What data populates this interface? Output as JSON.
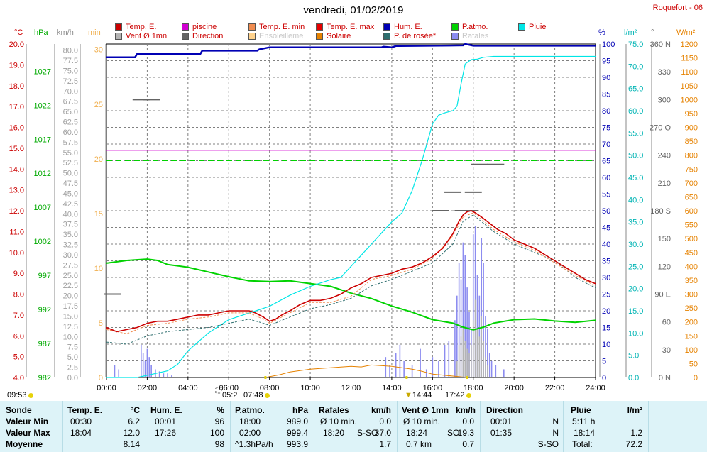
{
  "title": "vendredi, 01/02/2019",
  "station": "Roquefort - 06",
  "legend": [
    {
      "label": "Temp. E.",
      "color": "#cc0000",
      "col": 0,
      "row": 0
    },
    {
      "label": "Vent Ø 1mn",
      "color": "#b4b4b4",
      "col": 0,
      "row": 1
    },
    {
      "label": "piscine",
      "color": "#d200d2",
      "col": 1,
      "row": 0
    },
    {
      "label": "Direction",
      "color": "#646464",
      "col": 1,
      "row": 1
    },
    {
      "label": "Temp. E. min",
      "color": "#f08c50",
      "col": 2,
      "row": 0
    },
    {
      "label": "Ensoleilleme",
      "color": "#ffd28c",
      "col": 2,
      "row": 1,
      "faded": true
    },
    {
      "label": "Temp. E. max",
      "color": "#e60000",
      "col": 3,
      "row": 0
    },
    {
      "label": "Solaire",
      "color": "#e68200",
      "col": 3,
      "row": 1
    },
    {
      "label": "Hum. E.",
      "color": "#0000b4",
      "col": 4,
      "row": 0
    },
    {
      "label": "P. de rosée*",
      "color": "#2e6e6e",
      "col": 4,
      "row": 1
    },
    {
      "label": "P.atmo.",
      "color": "#00d200",
      "col": 5,
      "row": 0
    },
    {
      "label": "Rafales",
      "color": "#8c8cf0",
      "col": 5,
      "row": 1,
      "faded": true
    },
    {
      "label": "Pluie",
      "color": "#00e6e6",
      "col": 6,
      "row": 0
    }
  ],
  "units": {
    "temp": "°C",
    "press": "hPa",
    "wind": "km/h",
    "minutes": "min",
    "hum": "%",
    "rain": "l/m²",
    "dir": "°",
    "solar": "W/m²"
  },
  "axes": {
    "temp_ticks": [
      "20.0",
      "19.0",
      "18.0",
      "17.0",
      "16.0",
      "15.0",
      "14.0",
      "13.0",
      "12.0",
      "11.0",
      "10.0",
      "9.0",
      "8.0",
      "7.0",
      "6.0",
      "5.0",
      "4.0"
    ],
    "press_ticks": [
      "1027",
      "1022",
      "1017",
      "1012",
      "1007",
      "1002",
      "997",
      "992",
      "987",
      "982"
    ],
    "wind_ticks": [
      "80.0",
      "77.5",
      "75.0",
      "72.5",
      "70.0",
      "67.5",
      "65.0",
      "62.5",
      "60.0",
      "57.5",
      "55.0",
      "52.5",
      "50.0",
      "47.5",
      "45.0",
      "42.5",
      "40.0",
      "37.5",
      "35.0",
      "32.5",
      "30.0",
      "27.5",
      "25.0",
      "22.5",
      "20.0",
      "17.5",
      "15.0",
      "12.5",
      "10.0",
      "7.5",
      "5.0",
      "2.5",
      "0.0"
    ],
    "min_ticks": [
      "30",
      "25",
      "20",
      "15",
      "10",
      "5",
      "0"
    ],
    "hum_ticks": [
      "100",
      "95",
      "90",
      "85",
      "80",
      "75",
      "70",
      "65",
      "60",
      "55",
      "50",
      "45",
      "40",
      "35",
      "30",
      "25",
      "20",
      "15",
      "10",
      "5",
      "0"
    ],
    "rain_ticks": [
      "75.0",
      "70.0",
      "65.0",
      "60.0",
      "55.0",
      "50.0",
      "45.0",
      "40.0",
      "35.0",
      "30.0",
      "25.0",
      "20.0",
      "15.0",
      "10.0",
      "5.0",
      "0.0"
    ],
    "dir_ticks": [
      {
        "v": 360,
        "t": "360 N"
      },
      {
        "v": 330,
        "t": "330"
      },
      {
        "v": 300,
        "t": "300"
      },
      {
        "v": 270,
        "t": "270 O"
      },
      {
        "v": 240,
        "t": "240"
      },
      {
        "v": 210,
        "t": "210"
      },
      {
        "v": 180,
        "t": "180 S"
      },
      {
        "v": 150,
        "t": "150"
      },
      {
        "v": 120,
        "t": "120"
      },
      {
        "v": 90,
        "t": "90 E"
      },
      {
        "v": 60,
        "t": "60"
      },
      {
        "v": 30,
        "t": "30"
      },
      {
        "v": 0,
        "t": "0 N"
      }
    ],
    "solar_ticks": [
      "1200",
      "1150",
      "1100",
      "1050",
      "1000",
      "950",
      "900",
      "850",
      "800",
      "750",
      "700",
      "650",
      "600",
      "550",
      "500",
      "450",
      "400",
      "350",
      "300",
      "250",
      "200",
      "150",
      "100",
      "50",
      "0"
    ],
    "x_ticks": [
      "00:00",
      "02:00",
      "04:00",
      "06:00",
      "08:00",
      "10:00",
      "12:00",
      "14:00",
      "16:00",
      "18:00",
      "20:00",
      "22:00",
      "24:00"
    ]
  },
  "sun_events": {
    "sunrise_prev": "09:53",
    "sunrise": "07:48",
    "sunset": "17:42",
    "noon": "14:44",
    "day_length": "05:2",
    "sunrise_time_h": 7.8,
    "noon_time_h": 14.73,
    "sunset_time_h": 17.7,
    "length_marker_h": 5.5
  },
  "chart_data": {
    "type": "line",
    "title": "vendredi, 01/02/2019",
    "x_range_hours": [
      0,
      24
    ],
    "temp_range": [
      4,
      20
    ],
    "press_range": [
      982,
      1031
    ],
    "hum_range": [
      0,
      100
    ],
    "rain_range": [
      0,
      75
    ],
    "wind_range": [
      0,
      80
    ],
    "dir_range": [
      0,
      360
    ],
    "solar_range": [
      0,
      1200
    ],
    "series": [
      {
        "name": "Temp. E.",
        "unit": "°C",
        "color": "#cc0000",
        "x": [
          0,
          0.5,
          1,
          1.5,
          2,
          2.5,
          3,
          3.5,
          4,
          4.5,
          5,
          5.5,
          6,
          6.5,
          7,
          7.3,
          7.7,
          8,
          8.3,
          8.6,
          9,
          9.5,
          10,
          10.5,
          11,
          11.5,
          12,
          12.5,
          13,
          13.5,
          14,
          14.5,
          15,
          15.5,
          16,
          16.5,
          17,
          17.3,
          17.5,
          17.7,
          17.9,
          18.1,
          18.4,
          18.8,
          19.2,
          19.6,
          20,
          20.5,
          21,
          21.5,
          22,
          22.5,
          23,
          23.5,
          24
        ],
        "y": [
          6.4,
          6.2,
          6.3,
          6.4,
          6.6,
          6.7,
          6.7,
          6.8,
          6.9,
          7.0,
          7.0,
          7.1,
          7.2,
          7.2,
          7.2,
          7.1,
          6.9,
          6.7,
          6.8,
          7.0,
          7.2,
          7.5,
          7.7,
          7.7,
          7.8,
          8.0,
          8.3,
          8.5,
          8.8,
          8.9,
          9.0,
          9.2,
          9.3,
          9.5,
          9.8,
          10.2,
          10.9,
          11.5,
          11.8,
          11.95,
          12.0,
          11.9,
          11.7,
          11.4,
          11.1,
          10.9,
          10.6,
          10.4,
          10.2,
          9.9,
          9.6,
          9.3,
          9.0,
          8.7,
          8.5
        ]
      },
      {
        "name": "P. de rosée*",
        "unit": "°C",
        "color": "#2e6e6e",
        "dashed": true,
        "x": [
          0,
          1,
          2,
          3,
          4,
          5,
          6,
          7,
          7.7,
          8,
          9,
          10,
          11,
          12,
          13,
          14,
          15,
          16,
          17,
          17.5,
          18,
          18.5,
          19,
          20,
          21,
          22,
          23,
          24
        ],
        "y": [
          5.7,
          5.6,
          6.0,
          6.2,
          6.3,
          6.4,
          6.6,
          6.8,
          6.6,
          6.5,
          6.9,
          7.3,
          7.5,
          7.8,
          8.4,
          8.7,
          9.1,
          9.5,
          10.4,
          11.5,
          11.8,
          11.4,
          11.0,
          10.4,
          10.0,
          9.6,
          8.8,
          8.3
        ]
      },
      {
        "name": "Temp. E. min",
        "unit": "°C",
        "color": "#f08c50",
        "dashed": true,
        "x": [
          0,
          1,
          2,
          3,
          4,
          5,
          6,
          7,
          7.7,
          8,
          9,
          10,
          11,
          12,
          13,
          14,
          15,
          16,
          17,
          17.5,
          18,
          19,
          20,
          21,
          22,
          23,
          24
        ],
        "y": [
          6.3,
          6.1,
          6.5,
          6.6,
          6.8,
          6.9,
          7.1,
          7.1,
          6.8,
          6.6,
          7.1,
          7.6,
          7.6,
          7.9,
          8.7,
          8.9,
          9.2,
          9.7,
          10.8,
          11.7,
          11.9,
          11.1,
          10.5,
          10.1,
          9.5,
          8.9,
          8.4
        ]
      },
      {
        "name": "piscine",
        "unit": "°C",
        "color": "#d200d2",
        "x": [
          0,
          24
        ],
        "y": [
          14.9,
          14.9
        ]
      },
      {
        "name": "P.atmo.",
        "unit": "hPa",
        "color": "#00d200",
        "x": [
          0,
          1,
          2,
          2.5,
          3,
          4,
          5,
          6,
          7,
          8,
          9,
          10,
          11,
          12,
          13,
          14,
          15,
          16,
          17,
          17.5,
          18,
          18.5,
          19,
          20,
          21,
          22,
          23,
          24
        ],
        "y": [
          998.8,
          999.2,
          999.4,
          999.2,
          998.6,
          998.2,
          997.5,
          996.8,
          996.2,
          996.1,
          996.2,
          995.8,
          995.4,
          994.4,
          993.6,
          992.5,
          991.6,
          990.5,
          990.0,
          989.4,
          989.0,
          989.4,
          990.0,
          990.5,
          990.6,
          990.3,
          990.1,
          990.4
        ]
      },
      {
        "name": "Hum. E.",
        "unit": "%",
        "color": "#0000b4",
        "x": [
          0,
          1.4,
          1.5,
          4.6,
          4.7,
          5,
          7.4,
          7.5,
          8,
          13.5,
          13.6,
          14,
          14.2,
          14.4,
          17.5,
          17.6,
          18,
          24
        ],
        "y": [
          96,
          96,
          97,
          97,
          98,
          98,
          98,
          98.4,
          99,
          99,
          99.2,
          99,
          99.4,
          99.4,
          99.6,
          100,
          99.5,
          99.5
        ]
      },
      {
        "name": "Pluie",
        "unit": "l/m²",
        "color": "#00e6e6",
        "x": [
          0,
          1.5,
          2,
          3,
          3.5,
          4,
          5,
          5.5,
          6,
          7,
          8,
          9,
          10,
          11,
          11.5,
          12,
          12.5,
          13,
          13.5,
          14,
          14.5,
          15,
          15.5,
          16,
          16.3,
          16.6,
          17,
          17.2,
          17.4,
          17.6,
          17.9,
          18.2,
          18.5,
          19,
          20,
          24
        ],
        "y": [
          0,
          0,
          0.5,
          1.5,
          3,
          6,
          10,
          11.5,
          13,
          14.5,
          16,
          18.5,
          20.5,
          22,
          22.5,
          25,
          27.5,
          30,
          32.5,
          35,
          37,
          42,
          49,
          57,
          59,
          59.5,
          60,
          61,
          66,
          70.5,
          71.5,
          71.6,
          72,
          72.2,
          72.2,
          72.2
        ]
      },
      {
        "name": "Rafales",
        "unit": "km/h",
        "color": "#8c8cf0",
        "type": "bar",
        "x": [
          0.4,
          0.6,
          1.7,
          1.8,
          1.9,
          2.0,
          2.1,
          2.2,
          2.4,
          2.6,
          2.8,
          3.0,
          3.2,
          13.7,
          13.9,
          14.2,
          14.4,
          14.6,
          15.0,
          15.4,
          15.7,
          16.0,
          16.3,
          16.6,
          16.8,
          17.1,
          17.2,
          17.3,
          17.4,
          17.5,
          17.6,
          17.7,
          17.8,
          17.9,
          18.0,
          18.1,
          18.2,
          18.3,
          18.4,
          18.5,
          18.6,
          18.7,
          18.8,
          18.9,
          19.1,
          19.5
        ],
        "y": [
          3,
          2,
          8,
          6,
          4,
          7,
          5,
          3,
          2,
          1.5,
          1,
          1,
          0.5,
          5,
          3,
          6,
          8,
          4,
          3,
          7,
          2,
          5,
          4,
          8,
          9,
          14,
          20,
          28,
          24,
          33,
          30,
          22,
          16,
          12,
          35,
          37,
          25,
          20,
          34,
          28,
          15,
          12,
          6,
          4,
          3,
          2
        ]
      },
      {
        "name": "Vent Ø 1mn",
        "unit": "km/h",
        "color": "#b4b4b4",
        "type": "bar",
        "x": [
          17.2,
          17.3,
          17.4,
          17.5,
          17.6,
          17.7,
          17.8,
          17.9,
          18.0,
          18.1,
          18.2,
          18.3,
          18.4,
          18.5,
          18.6,
          18.7
        ],
        "y": [
          4,
          8,
          10,
          12,
          9,
          7,
          6,
          8,
          14,
          19,
          12,
          10,
          15,
          9,
          5,
          3
        ]
      },
      {
        "name": "Direction",
        "unit": "°",
        "color": "#646464",
        "type": "scatter",
        "x": [
          0.3,
          1.7,
          2.2,
          17.0,
          18.0,
          18.3,
          19.1,
          16.4,
          17.5,
          17.8
        ],
        "y": [
          90,
          300,
          300,
          200,
          200,
          230,
          230,
          180,
          180,
          180
        ]
      },
      {
        "name": "Solaire",
        "unit": "W/m²",
        "color": "#e68200",
        "x": [
          7.8,
          8.5,
          9,
          10,
          11,
          12,
          12.5,
          13,
          14,
          15,
          15.5,
          16,
          17,
          17.7
        ],
        "y": [
          0,
          10,
          20,
          30,
          35,
          40,
          38,
          45,
          40,
          30,
          22,
          12,
          5,
          0
        ]
      }
    ],
    "reference_lines": [
      {
        "name": "green-dashed",
        "color": "#00d200",
        "hum_value": 65
      }
    ]
  },
  "stats": {
    "sonde": {
      "title": "Sonde",
      "rows": [
        "Valeur Min",
        "Valeur Max",
        "Moyenne"
      ]
    },
    "temp": {
      "title": "Temp. E.",
      "unit": "°C",
      "rows": [
        [
          "00:30",
          "6.2"
        ],
        [
          "18:04",
          "12.0"
        ],
        [
          "",
          "8.14"
        ]
      ]
    },
    "hum": {
      "title": "Hum. E.",
      "unit": "%",
      "rows": [
        [
          "00:01",
          "96"
        ],
        [
          "17:26",
          "100"
        ],
        [
          "",
          "98"
        ]
      ]
    },
    "press": {
      "title": "P.atmo.",
      "unit": "hPa",
      "rows": [
        [
          "18:00",
          "989.0"
        ],
        [
          "02:00",
          "999.4"
        ],
        [
          "^1.3hPa/h",
          "993.9"
        ]
      ]
    },
    "gust": {
      "title": "Rafales",
      "unit": "km/h",
      "rows": [
        [
          "Ø 10 min.",
          "",
          "0.0"
        ],
        [
          "18:20",
          "S-SO",
          "37.0"
        ],
        [
          "",
          "",
          "1.7"
        ]
      ]
    },
    "wind": {
      "title": "Vent Ø 1mn",
      "unit": "km/h",
      "rows": [
        [
          "Ø 10 min.",
          "",
          "0.0"
        ],
        [
          "18:24",
          "SO",
          "19.3"
        ],
        [
          "0,7 km",
          "",
          "0.7"
        ]
      ]
    },
    "dir": {
      "title": "Direction",
      "unit": "",
      "rows": [
        [
          "00:01",
          "N"
        ],
        [
          "01:35",
          "N"
        ],
        [
          "",
          "S-SO"
        ]
      ]
    },
    "rain": {
      "title": "Pluie",
      "unit": "l/m²",
      "rows": [
        [
          "5:11 h",
          ""
        ],
        [
          "18:14",
          "1.2"
        ],
        [
          "Total:",
          "72.2"
        ]
      ]
    }
  }
}
